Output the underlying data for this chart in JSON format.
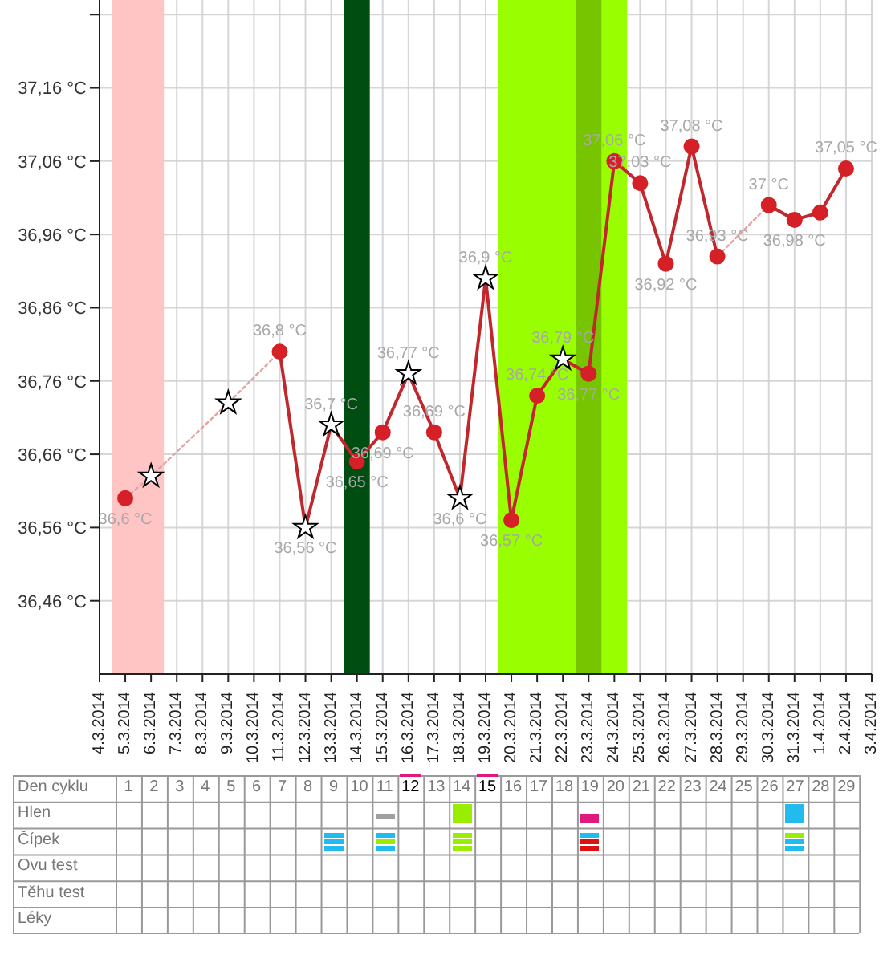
{
  "chart_data": [
    {
      "type": "line",
      "xlim": [
        "2014-03-04",
        "2014-04-03"
      ],
      "xticks": [
        {
          "value": "2014-03-04",
          "label": "4.3.2014"
        },
        {
          "value": "2014-03-05",
          "label": "5.3.2014"
        },
        {
          "value": "2014-03-06",
          "label": "6.3.2014"
        },
        {
          "value": "2014-03-07",
          "label": "7.3.2014"
        },
        {
          "value": "2014-03-08",
          "label": "8.3.2014"
        },
        {
          "value": "2014-03-09",
          "label": "9.3.2014"
        },
        {
          "value": "2014-03-10",
          "label": "10.3.2014"
        },
        {
          "value": "2014-03-11",
          "label": "11.3.2014"
        },
        {
          "value": "2014-03-12",
          "label": "12.3.2014"
        },
        {
          "value": "2014-03-13",
          "label": "13.3.2014"
        },
        {
          "value": "2014-03-14",
          "label": "14.3.2014"
        },
        {
          "value": "2014-03-15",
          "label": "15.3.2014"
        },
        {
          "value": "2014-03-16",
          "label": "16.3.2014"
        },
        {
          "value": "2014-03-17",
          "label": "17.3.2014"
        },
        {
          "value": "2014-03-18",
          "label": "18.3.2014"
        },
        {
          "value": "2014-03-19",
          "label": "19.3.2014"
        },
        {
          "value": "2014-03-20",
          "label": "20.3.2014"
        },
        {
          "value": "2014-03-21",
          "label": "21.3.2014"
        },
        {
          "value": "2014-03-22",
          "label": "22.3.2014"
        },
        {
          "value": "2014-03-23",
          "label": "23.3.2014"
        },
        {
          "value": "2014-03-24",
          "label": "24.3.2014"
        },
        {
          "value": "2014-03-25",
          "label": "25.3.2014"
        },
        {
          "value": "2014-03-26",
          "label": "26.3.2014"
        },
        {
          "value": "2014-03-27",
          "label": "27.3.2014"
        },
        {
          "value": "2014-03-28",
          "label": "28.3.2014"
        },
        {
          "value": "2014-03-29",
          "label": "29.3.2014"
        },
        {
          "value": "2014-03-30",
          "label": "30.3.2014"
        },
        {
          "value": "2014-03-31",
          "label": "31.3.2014"
        },
        {
          "value": "2014-04-01",
          "label": "1.4.2014"
        },
        {
          "value": "2014-04-02",
          "label": "2.4.2014"
        },
        {
          "value": "2014-04-03",
          "label": "3.4.2014"
        }
      ],
      "ylim": [
        36.36,
        37.28
      ],
      "yticks": [
        {
          "value": 36.46,
          "label": "36,46 °C"
        },
        {
          "value": 36.56,
          "label": "36,56 °C"
        },
        {
          "value": 36.66,
          "label": "36,66 °C"
        },
        {
          "value": 36.76,
          "label": "36,76 °C"
        },
        {
          "value": 36.86,
          "label": "36,86 °C"
        },
        {
          "value": 36.96,
          "label": "36,96 °C"
        },
        {
          "value": 37.06,
          "label": "37,06 °C"
        },
        {
          "value": 37.16,
          "label": "37,16 °C"
        },
        {
          "value": 37.26,
          "label": null
        }
      ],
      "grid": true,
      "bands": [
        {
          "axis": "x",
          "from": "2014-03-04T12:00",
          "to": "2014-03-06T12:00",
          "color": "#ffc4c4"
        },
        {
          "axis": "x",
          "from": "2014-03-13T12:00",
          "to": "2014-03-14T12:00",
          "color": "#004d12"
        },
        {
          "axis": "x",
          "from": "2014-03-19T12:00",
          "to": "2014-03-24T12:00",
          "color": "#99ff00"
        },
        {
          "axis": "x",
          "from": "2014-03-22T12:00",
          "to": "2014-03-23T12:00",
          "color": "#77c400"
        }
      ],
      "series": [
        {
          "type": "line",
          "color": "#c0282e",
          "line_style": "solid",
          "marker": "none",
          "x": [
            "2014-03-11",
            "2014-03-12",
            "2014-03-13",
            "2014-03-14",
            "2014-03-15",
            "2014-03-16",
            "2014-03-17",
            "2014-03-18",
            "2014-03-19",
            "2014-03-20",
            "2014-03-21",
            "2014-03-22",
            "2014-03-23",
            "2014-03-24",
            "2014-03-25",
            "2014-03-26",
            "2014-03-27",
            "2014-03-28",
            "2014-03-29",
            "2014-03-30",
            "2014-03-31",
            "2014-04-01",
            "2014-04-02"
          ],
          "values": [
            36.8,
            36.56,
            36.7,
            36.65,
            36.69,
            36.77,
            36.69,
            36.6,
            36.9,
            36.57,
            36.74,
            36.79,
            36.77,
            37.06,
            37.03,
            36.92,
            37.08,
            36.93,
            null,
            37,
            36.98,
            36.99,
            37.05
          ]
        },
        {
          "type": "line",
          "color": "#e8a0a0",
          "line_style": "dotted",
          "marker": "none",
          "x": [
            "2014-03-05",
            "2014-03-06",
            "2014-03-09",
            "2014-03-11",
            "2014-03-12",
            "2014-03-28",
            "2014-03-30"
          ],
          "values": [
            36.6,
            36.63,
            36.73,
            36.8,
            null,
            36.93,
            37
          ]
        },
        {
          "type": "scatter",
          "color": "#d42026",
          "marker": "circle",
          "x": [
            "2014-03-05",
            "2014-03-11",
            "2014-03-14",
            "2014-03-15",
            "2014-03-17",
            "2014-03-20",
            "2014-03-21",
            "2014-03-23",
            "2014-03-24",
            "2014-03-25",
            "2014-03-26",
            "2014-03-27",
            "2014-03-28",
            "2014-03-30",
            "2014-03-31",
            "2014-04-01",
            "2014-04-02"
          ],
          "values": [
            36.6,
            36.8,
            36.65,
            36.69,
            36.69,
            36.57,
            36.74,
            36.77,
            37.06,
            37.03,
            36.92,
            37.08,
            36.93,
            37,
            36.98,
            36.99,
            37.05
          ],
          "value_labels": [
            "36,6 °C",
            "36,8 °C",
            "36,65 °C",
            "36,69 °C",
            "36,69 °C",
            "36,57 °C",
            "36,74 °C",
            "36,77 °C",
            "37,06 °C",
            "37,03 °C",
            "36,92 °C",
            "37,08 °C",
            "36,93 °C",
            "37 °C",
            "36,98 °C",
            null,
            "37,05 °C"
          ]
        },
        {
          "type": "scatter",
          "color": "#ffffff",
          "marker": "star",
          "x": [
            "2014-03-06",
            "2014-03-09",
            "2014-03-12",
            "2014-03-13",
            "2014-03-16",
            "2014-03-18",
            "2014-03-19",
            "2014-03-22"
          ],
          "values": [
            36.63,
            36.73,
            36.56,
            36.7,
            36.77,
            36.6,
            36.9,
            36.79
          ],
          "value_labels": [
            null,
            null,
            "36,56 °C",
            "36,7 °C",
            "36,77 °C",
            "36,6 °C",
            "36,9 °C",
            "36,79 °C"
          ]
        }
      ]
    },
    {
      "type": "heatmap",
      "xlabel": "Den cyklu",
      "cells": [
        [
          null,
          null,
          null,
          null,
          null,
          null,
          null,
          null,
          null,
          null,
          null,
          null,
          null,
          null,
          null,
          null,
          null,
          null,
          null,
          null,
          null,
          null,
          null,
          null,
          null,
          null,
          null,
          null,
          null
        ],
        [
          null,
          null,
          null,
          null,
          null,
          null,
          null,
          null,
          null,
          null,
          null,
          null,
          null,
          null,
          null,
          null,
          null,
          null,
          null,
          null,
          null,
          null,
          null,
          null,
          null,
          null,
          null,
          null,
          null
        ],
        [
          null,
          null,
          null,
          null,
          null,
          null,
          null,
          null,
          null,
          null,
          null,
          null,
          null,
          null,
          null,
          null,
          null,
          null,
          null,
          null,
          null,
          null,
          null,
          null,
          null,
          null,
          null,
          null,
          null
        ],
        [
          null,
          null,
          null,
          null,
          null,
          null,
          null,
          null,
          null,
          null,
          null,
          null,
          null,
          null,
          null,
          null,
          null,
          null,
          null,
          null,
          null,
          null,
          null,
          null,
          null,
          null,
          null,
          null,
          null
        ],
        [
          null,
          null,
          null,
          null,
          null,
          null,
          null,
          null,
          null,
          null,
          null,
          null,
          null,
          null,
          null,
          null,
          null,
          null,
          null,
          null,
          null,
          null,
          null,
          null,
          null,
          null,
          null,
          null,
          null
        ]
      ],
      "categories": [
        "1",
        "2",
        "3",
        "4",
        "5",
        "6",
        "7",
        "8",
        "9",
        "10",
        "11",
        "12",
        "13",
        "14",
        "15",
        "16",
        "17",
        "18",
        "19",
        "20",
        "21",
        "22",
        "23",
        "24",
        "25",
        "26",
        "27",
        "28",
        "29"
      ],
      "y_categories": [
        "Hlen",
        "Čípek",
        "Ovu test",
        "Těhu test",
        "Léky"
      ]
    }
  ]
}
